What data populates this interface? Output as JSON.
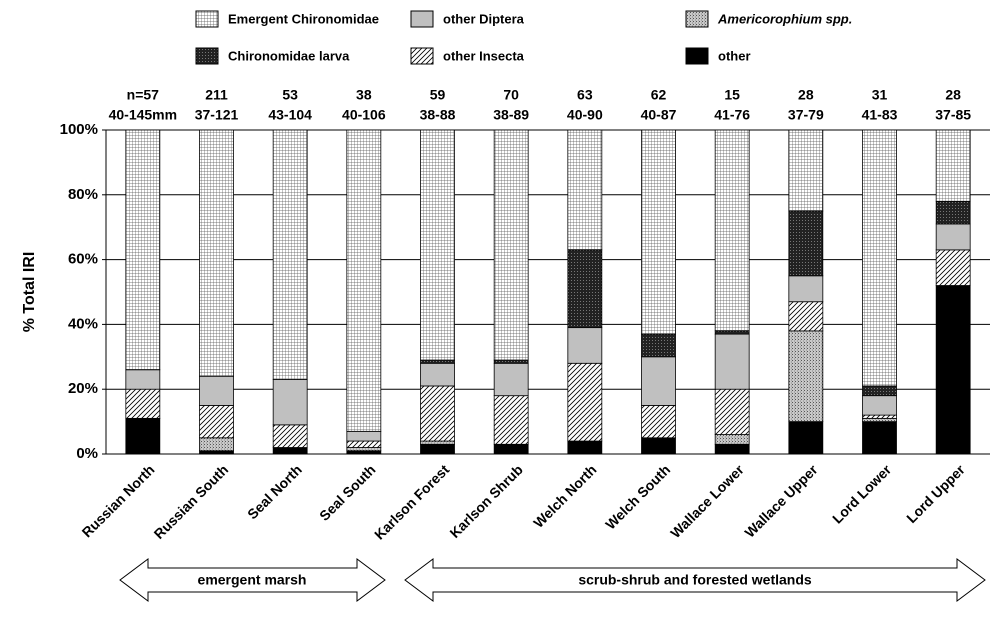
{
  "chart_data": {
    "type": "stacked_bar",
    "y_label": "% Total IRI",
    "categories": [
      "Russian North",
      "Russian South",
      "Seal North",
      "Seal South",
      "Karlson Forest",
      "Karlson Shrub",
      "Welch North",
      "Welch South",
      "Wallace Lower",
      "Wallace Upper",
      "Lord Lower",
      "Lord Upper"
    ],
    "sample_sizes": [
      "n=57",
      "211",
      "53",
      "38",
      "59",
      "70",
      "63",
      "62",
      "15",
      "28",
      "31",
      "28"
    ],
    "size_ranges": [
      "40-145mm",
      "37-121",
      "43-104",
      "40-106",
      "38-88",
      "38-89",
      "40-90",
      "40-87",
      "41-76",
      "37-79",
      "41-83",
      "37-85"
    ],
    "series": [
      {
        "name": "other",
        "color": "#000000",
        "pattern": "solid",
        "values": [
          11,
          1,
          2,
          1,
          3,
          3,
          4,
          5,
          3,
          10,
          10,
          52
        ]
      },
      {
        "name": "Americorophium spp.",
        "color": "#b0b0b0",
        "pattern": "dots",
        "values": [
          0,
          4,
          0,
          1,
          1,
          0,
          0,
          0,
          3,
          28,
          1,
          0
        ]
      },
      {
        "name": "other Insecta",
        "color": "#ffffff",
        "pattern": "hatch",
        "values": [
          9,
          10,
          7,
          2,
          17,
          15,
          24,
          10,
          14,
          9,
          1,
          11
        ]
      },
      {
        "name": "other Diptera",
        "color": "#c0c0c0",
        "pattern": "solid",
        "values": [
          6,
          9,
          14,
          3,
          7,
          10,
          11,
          15,
          17,
          8,
          6,
          8
        ]
      },
      {
        "name": "Chironomidae larva",
        "color": "#404040",
        "pattern": "crosshatch",
        "values": [
          0,
          0,
          0,
          0,
          1,
          1,
          24,
          7,
          1,
          20,
          3,
          7
        ]
      },
      {
        "name": "Emergent Chironomidae",
        "color": "#ffffff",
        "pattern": "grid",
        "values": [
          74,
          76,
          77,
          93,
          71,
          71,
          37,
          63,
          62,
          25,
          79,
          22
        ]
      }
    ],
    "ylim": [
      0,
      100
    ],
    "yticks": [
      {
        "value": 0,
        "label": "0%"
      },
      {
        "value": 20,
        "label": "20%"
      },
      {
        "value": 40,
        "label": "40%"
      },
      {
        "value": 60,
        "label": "60%"
      },
      {
        "value": 80,
        "label": "80%"
      },
      {
        "value": 100,
        "label": "100%"
      }
    ],
    "grid": true,
    "groups": [
      "emergent marsh",
      "scrub-shrub and forested wetlands"
    ]
  }
}
